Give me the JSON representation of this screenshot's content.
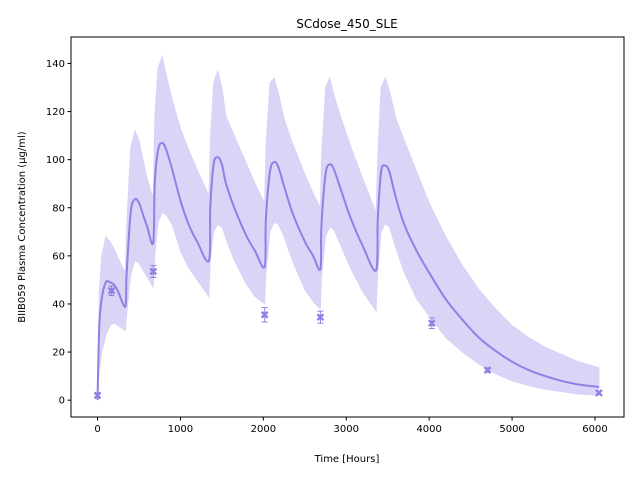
{
  "chart_data": {
    "type": "line",
    "title": "SCdose_450_SLE",
    "xlabel": "Time [Hours]",
    "ylabel": "BIIB059 Plasma Concentration (µg/ml)",
    "xlim": [
      -320,
      6350
    ],
    "ylim": [
      -7,
      151
    ],
    "xticks": [
      0,
      1000,
      2000,
      3000,
      4000,
      5000,
      6000
    ],
    "yticks": [
      0,
      20,
      40,
      60,
      80,
      100,
      120,
      140
    ],
    "grid": false,
    "colors": {
      "line": "#8f80e5",
      "band": "#d8d2f7",
      "points": "#8f80e5"
    },
    "series": [
      {
        "type": "line",
        "x": [
          0,
          20,
          50,
          100,
          150,
          200,
          250,
          336,
          350,
          400,
          450,
          500,
          550,
          600,
          672,
          690,
          730,
          780,
          830,
          900,
          1000,
          1100,
          1200,
          1344,
          1360,
          1400,
          1450,
          1500,
          1550,
          1650,
          1800,
          1900,
          2016,
          2030,
          2080,
          2130,
          2180,
          2250,
          2350,
          2500,
          2600,
          2688,
          2700,
          2750,
          2800,
          2850,
          2950,
          3050,
          3200,
          3360,
          3380,
          3420,
          3470,
          3520,
          3600,
          3700,
          3850,
          4000,
          4200,
          4400,
          4600,
          4800,
          5000,
          5200,
          5400,
          5600,
          5800,
          6048
        ],
        "y": [
          0,
          30,
          42,
          49,
          49,
          48,
          45,
          39,
          52,
          78,
          83.5,
          82,
          77,
          72,
          65.5,
          90,
          104,
          107,
          104,
          96,
          83,
          73,
          66,
          58,
          80,
          98,
          101,
          98,
          90,
          80,
          68,
          62,
          55.5,
          75,
          95,
          99,
          97,
          89,
          78,
          66,
          60,
          54.5,
          72,
          94,
          98,
          96,
          86,
          76,
          64,
          54,
          75,
          95,
          97.5,
          95,
          84,
          73,
          62,
          53,
          42,
          33.5,
          26,
          20.5,
          16,
          12.5,
          10,
          8,
          6.5,
          5.5
        ]
      },
      {
        "type": "band",
        "x": [
          0,
          20,
          50,
          100,
          150,
          200,
          250,
          336,
          350,
          400,
          450,
          500,
          550,
          600,
          672,
          690,
          730,
          780,
          830,
          900,
          1000,
          1100,
          1200,
          1344,
          1360,
          1400,
          1450,
          1500,
          1550,
          1650,
          1800,
          1900,
          2016,
          2030,
          2080,
          2130,
          2180,
          2250,
          2350,
          2500,
          2600,
          2688,
          2700,
          2750,
          2800,
          2850,
          2950,
          3050,
          3200,
          3360,
          3380,
          3420,
          3470,
          3520,
          3600,
          3700,
          3850,
          4000,
          4200,
          4400,
          4600,
          4800,
          5000,
          5200,
          5400,
          5600,
          5800,
          6048
        ],
        "upper": [
          0,
          45,
          60,
          68,
          66,
          63,
          59,
          53,
          72,
          105,
          112,
          108,
          100,
          92,
          84,
          118,
          138,
          143,
          135,
          125,
          113,
          104,
          96,
          85,
          108,
          132,
          137,
          130,
          118,
          110,
          98,
          90,
          82,
          105,
          132,
          134,
          128,
          117,
          107,
          94,
          86,
          80,
          100,
          130,
          134,
          127,
          116,
          106,
          92,
          78,
          102,
          130,
          134,
          129,
          117,
          108,
          95,
          82,
          68,
          56,
          46,
          38,
          31,
          26,
          22,
          19,
          16,
          13.5
        ],
        "lower": [
          0,
          12,
          20,
          27,
          31,
          32,
          31,
          29,
          35,
          52,
          58,
          57,
          54,
          51,
          47,
          60,
          74,
          78,
          77,
          73,
          62,
          55,
          50,
          43,
          58,
          70,
          73,
          72,
          67,
          58,
          48,
          43,
          40,
          52,
          70,
          74,
          73,
          68,
          58,
          46,
          41,
          38,
          50,
          68,
          72,
          71,
          63,
          55,
          45,
          37,
          53,
          70,
          73.5,
          72,
          63,
          53,
          42,
          35,
          26,
          20,
          15,
          11,
          8,
          6,
          4.5,
          3.5,
          2.5,
          2
        ]
      },
      {
        "type": "errorbar",
        "x": [
          0,
          168,
          672,
          2016,
          2688,
          4032,
          4704,
          6048
        ],
        "y": [
          2,
          45.5,
          53.5,
          35.5,
          34.5,
          32,
          12.5,
          3
        ],
        "err": [
          0.8,
          2,
          2.5,
          3,
          2.5,
          2.2,
          0.9,
          0.6
        ]
      }
    ]
  }
}
